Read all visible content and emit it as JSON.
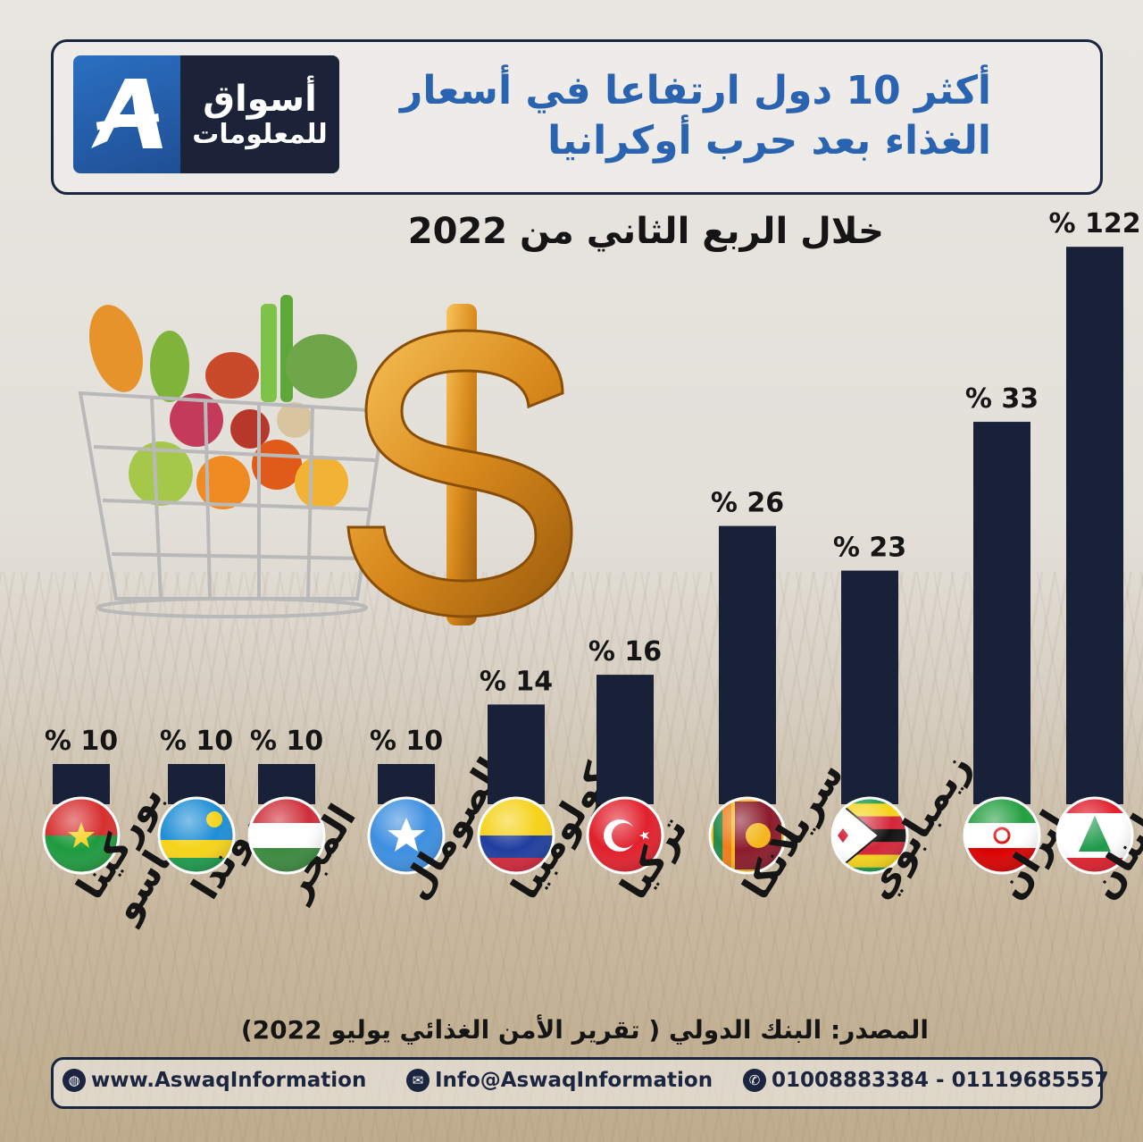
{
  "header": {
    "title_line1": "أكثر 10 دول ارتفاعا في أسعار",
    "title_line2": "الغذاء بعد حرب أوكرانيا",
    "subtitle": "خلال الربع الثاني من 2022"
  },
  "logo": {
    "line1": "أسواق",
    "line2": "للمعلومات",
    "mark": "A",
    "colors": {
      "mark_bg": "#2b6fc2",
      "text_bg": "#1c2238"
    }
  },
  "colors": {
    "bar": "#182138",
    "title": "#2a63b0",
    "text": "#151515"
  },
  "chart_data": {
    "type": "bar",
    "categories": [
      "بوركينا فاسو",
      "روندا",
      "المجر",
      "الصومال",
      "كولومبيا",
      "تركيا",
      "سريلانكا",
      "زيمبابوي",
      "إيران",
      "لبنان"
    ],
    "values": [
      10,
      10,
      10,
      10,
      14,
      16,
      26,
      23,
      33,
      122
    ],
    "value_labels": [
      "% 10",
      "% 10",
      "% 10",
      "% 10",
      "% 14",
      "% 16",
      "% 26",
      "% 23",
      "% 33",
      "% 122"
    ],
    "label_lines": [
      [
        "بوركينا",
        "فاسو"
      ],
      [
        "روندا"
      ],
      [
        "المجر"
      ],
      [
        "الصومال"
      ],
      [
        "كولومبيا"
      ],
      [
        "تركيا"
      ],
      [
        "سريلانكا"
      ],
      [
        "زيمبابوي"
      ],
      [
        "إيران"
      ],
      [
        "لبنان"
      ]
    ],
    "flags": [
      "burkina-faso-flag",
      "rwanda-flag",
      "hungary-flag",
      "somalia-flag",
      "colombia-flag",
      "turkey-flag",
      "sri-lanka-flag",
      "zimbabwe-flag",
      "iran-flag",
      "lebanon-flag"
    ],
    "unit": "%",
    "grid": false,
    "legend": "none"
  },
  "source": "المصدر: البنك الدولي ( تقرير الأمن الغذائي يوليو 2022)",
  "footer": {
    "website": "www.AswaqInformation",
    "email": "Info@AswaqInformation",
    "phones": "01008883384 - 01119685557"
  }
}
